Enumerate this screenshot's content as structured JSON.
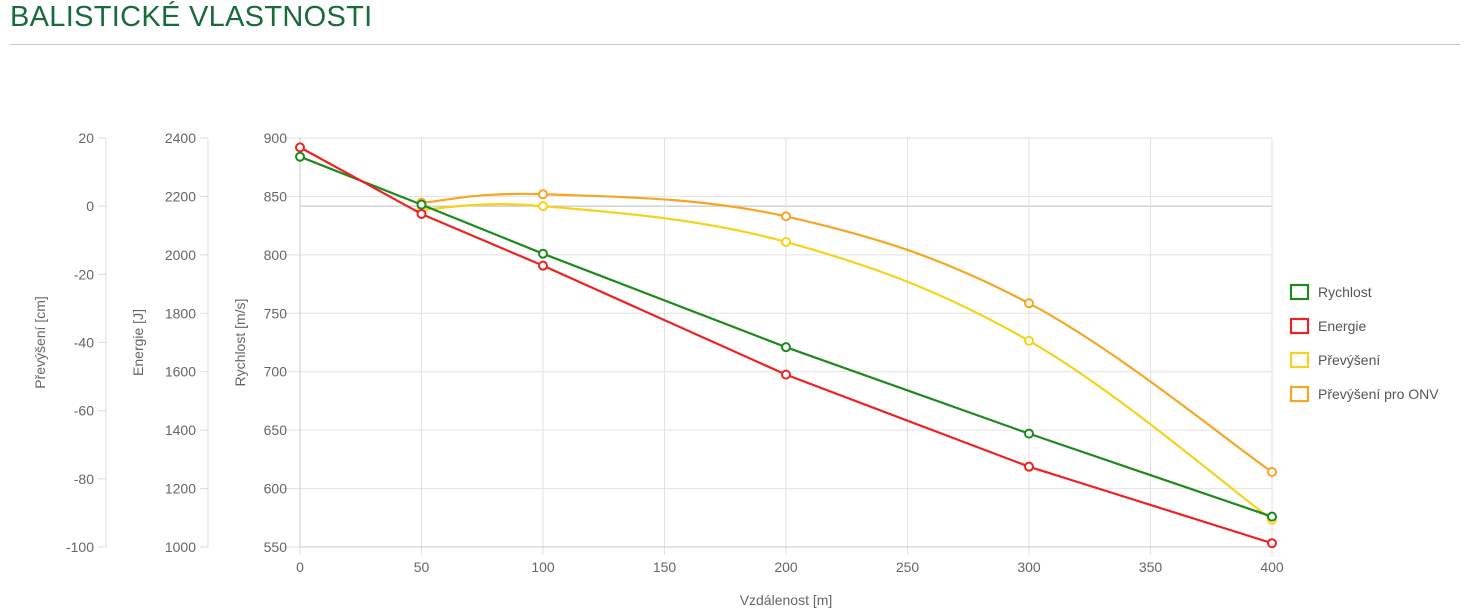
{
  "page": {
    "title": "BALISTICKÉ VLASTNOSTI"
  },
  "chart_data": {
    "type": "line",
    "x": [
      0,
      50,
      100,
      200,
      300,
      400
    ],
    "xlabel": "Vzdálenost [m]",
    "xlim": [
      0,
      400
    ],
    "xticks": [
      0,
      50,
      100,
      150,
      200,
      250,
      300,
      350,
      400
    ],
    "grid": true,
    "legend_position": "right",
    "axes": [
      {
        "id": "velocity",
        "label": "Rychlost [m/s]",
        "min": 550,
        "max": 900,
        "ticks": [
          550,
          600,
          650,
          700,
          750,
          800,
          850,
          900
        ]
      },
      {
        "id": "energy",
        "label": "Energie [J]",
        "min": 1000,
        "max": 2400,
        "ticks": [
          1000,
          1200,
          1400,
          1600,
          1800,
          2000,
          2200,
          2400
        ]
      },
      {
        "id": "drop",
        "label": "Převýšení [cm]",
        "min": -100,
        "max": 20,
        "ticks": [
          -100,
          -80,
          -60,
          -40,
          -20,
          0,
          20
        ]
      }
    ],
    "series": [
      {
        "name": "Rychlost",
        "axis": "velocity",
        "color": "#1e8a1e",
        "smooth": false,
        "values": [
          884,
          843,
          801,
          721,
          647,
          576
        ]
      },
      {
        "name": "Energie",
        "axis": "energy",
        "color": "#ee2222",
        "smooth": false,
        "values": [
          2368,
          2140,
          1963,
          1590,
          1275,
          1013
        ]
      },
      {
        "name": "Převýšení",
        "axis": "drop",
        "color": "#f5d31c",
        "smooth": true,
        "values": [
          null,
          -1,
          0,
          -10.5,
          -39.5,
          -92
        ]
      },
      {
        "name": "Převýšení pro ONV",
        "axis": "drop",
        "color": "#f5a623",
        "smooth": true,
        "values": [
          null,
          1,
          3.5,
          -3,
          -28.5,
          -78
        ]
      }
    ]
  }
}
